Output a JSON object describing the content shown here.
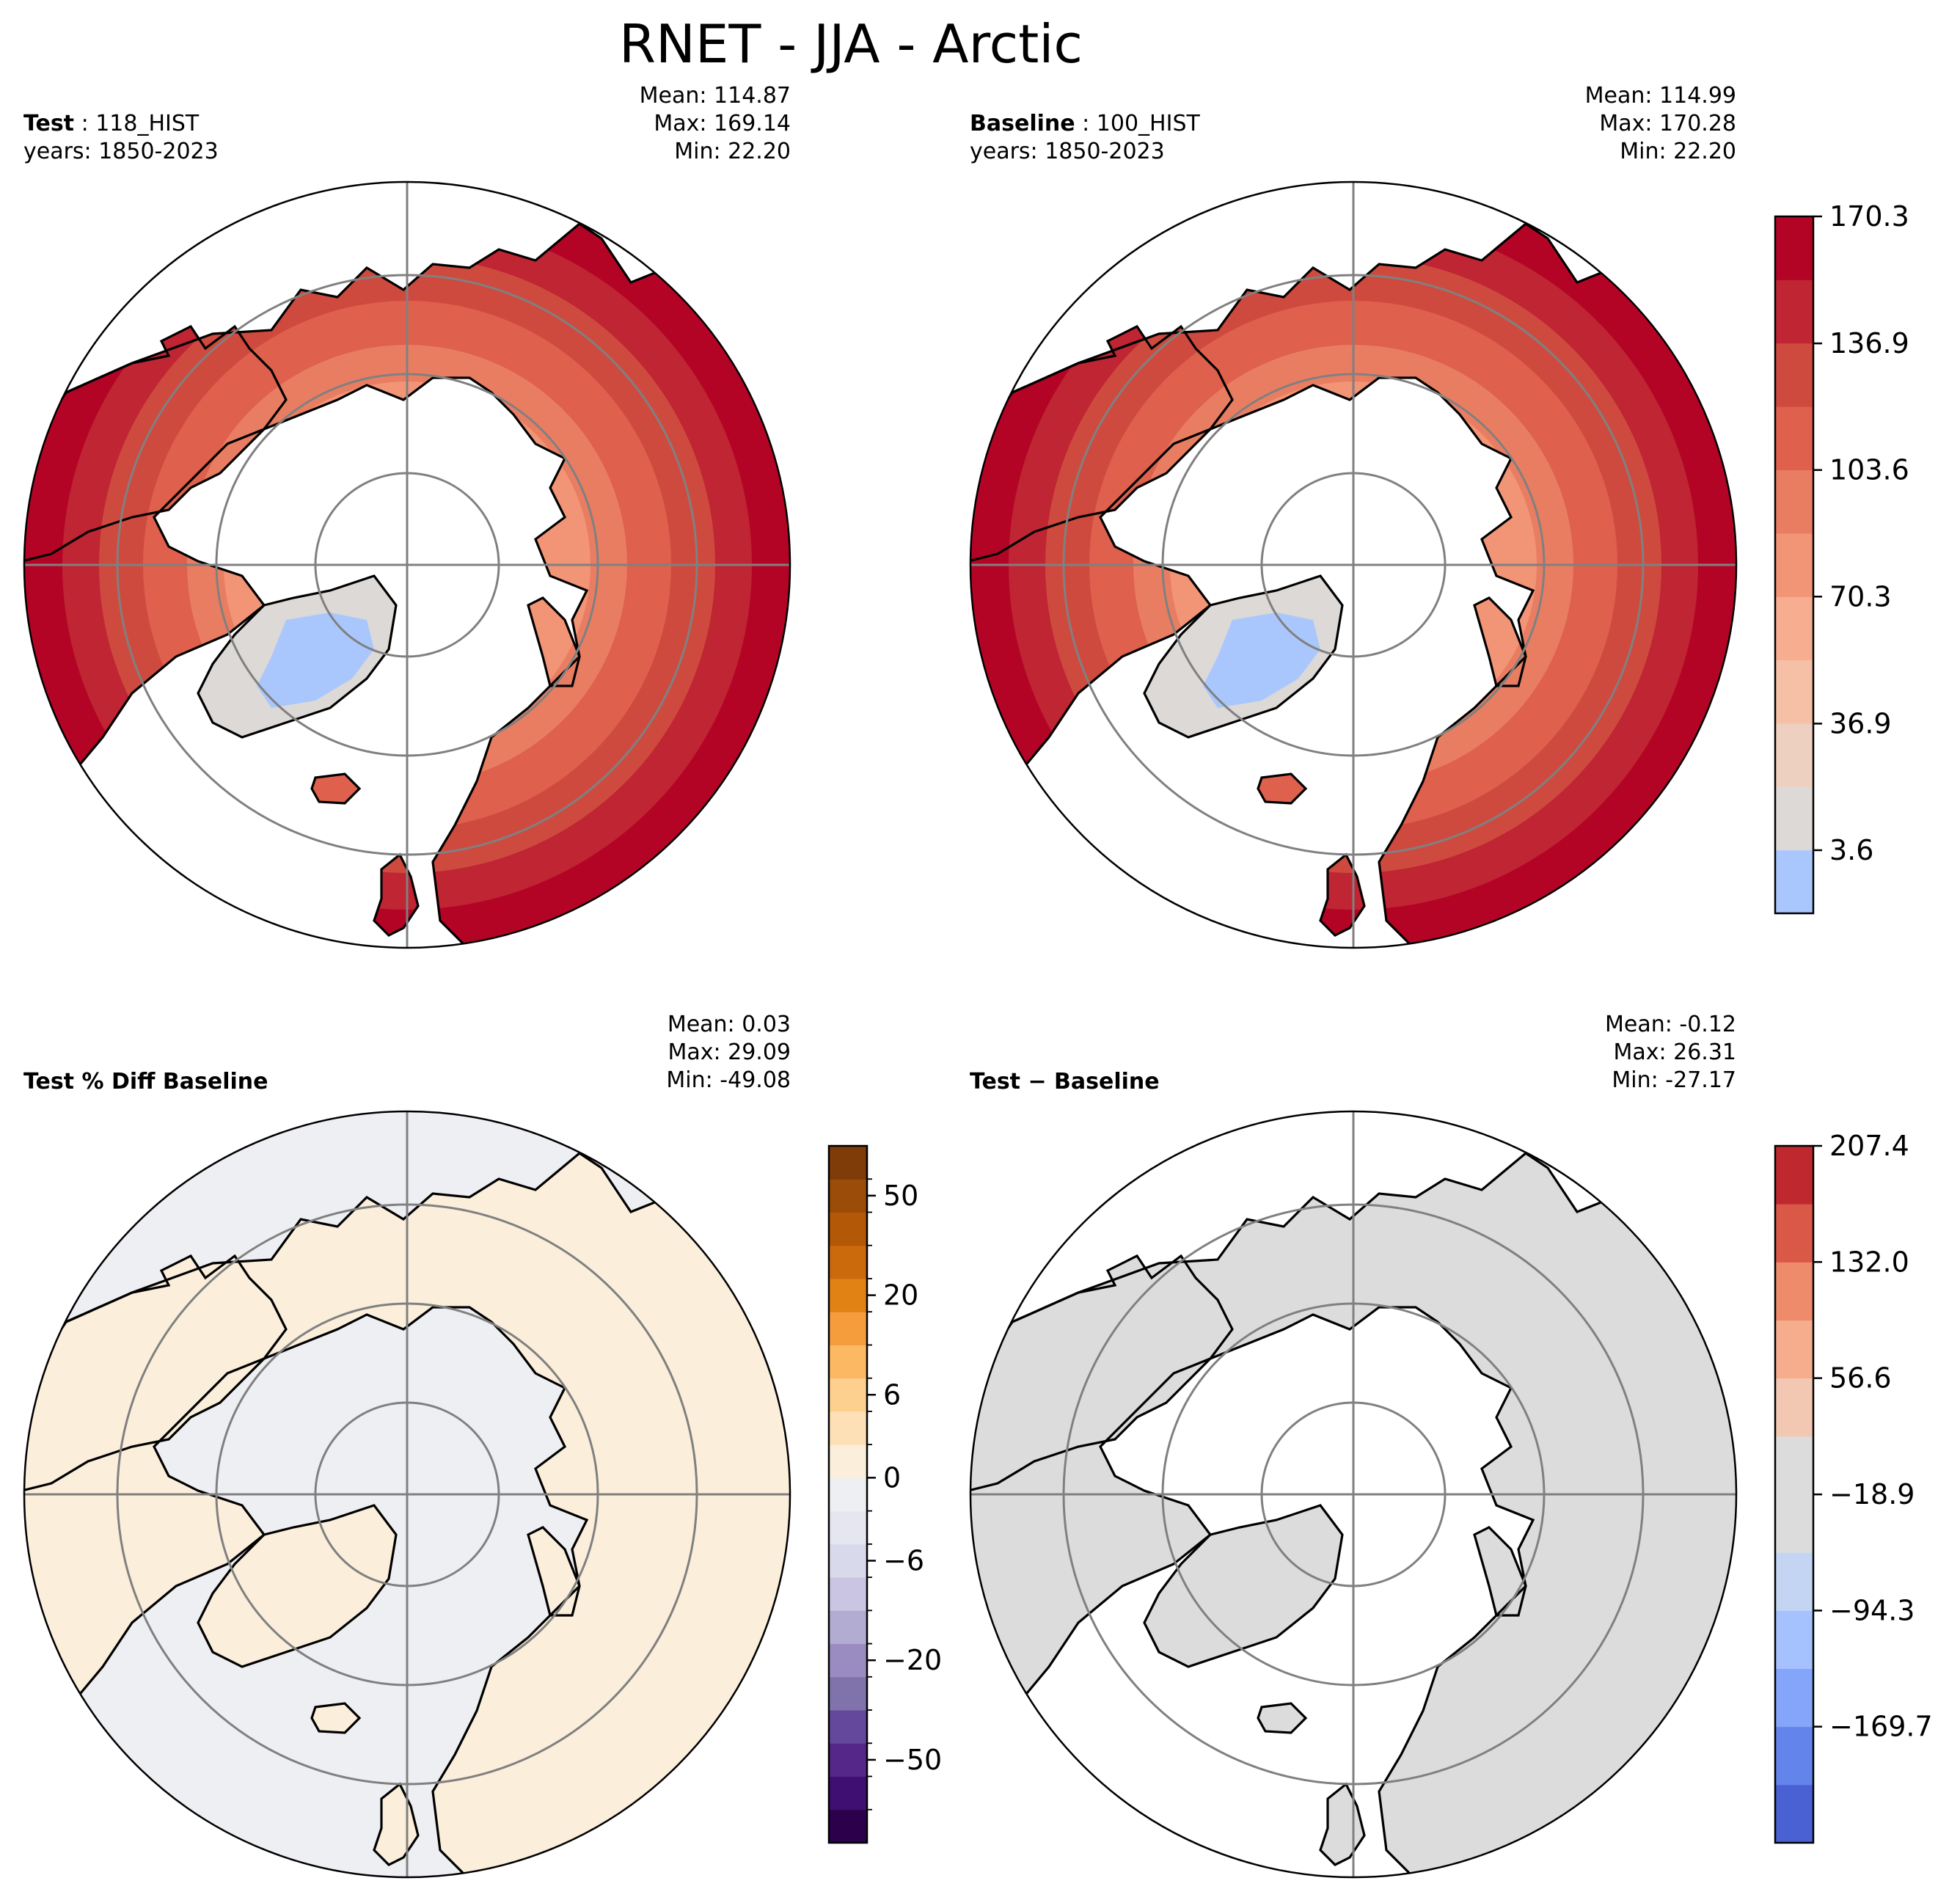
{
  "figure": {
    "title": "RNET - JJA - Arctic"
  },
  "panels": {
    "test": {
      "label_key": "Test",
      "label_val": " : 118_HIST",
      "years": "years: 1850-2023",
      "stats": [
        "Mean: 114.87",
        "Max: 169.14",
        "Min: 22.20"
      ]
    },
    "baseline": {
      "label_key": "Baseline",
      "label_val": " : 100_HIST",
      "years": "years: 1850-2023",
      "stats": [
        "Mean: 114.99",
        "Max: 170.28",
        "Min: 22.20"
      ]
    },
    "pctdiff": {
      "label": "Test % Diff Baseline",
      "stats": [
        "Mean:  0.03",
        "Max: 29.09",
        "Min: -49.08"
      ]
    },
    "diff": {
      "label": "Test − Baseline",
      "stats": [
        "Mean: -0.12",
        "Max: 26.31",
        "Min: -27.17"
      ]
    }
  },
  "chart_data": [
    {
      "type": "heatmap",
      "projection": "north-polar-stereographic",
      "panel": "Test",
      "variable": "RNET",
      "season": "JJA",
      "region": "Arctic",
      "case": "118_HIST",
      "years": "1850-2023",
      "mean": 114.87,
      "max": 169.14,
      "min": 22.2,
      "colorbar": "shared with Baseline"
    },
    {
      "type": "heatmap",
      "projection": "north-polar-stereographic",
      "panel": "Baseline",
      "variable": "RNET",
      "season": "JJA",
      "region": "Arctic",
      "case": "100_HIST",
      "years": "1850-2023",
      "mean": 114.99,
      "max": 170.28,
      "min": 22.2,
      "colorbar": {
        "levels": [
          -13,
          3.6,
          20.3,
          36.9,
          53.6,
          70.3,
          87.0,
          103.6,
          120.3,
          136.9,
          153.6,
          170.3
        ],
        "tick_labels": [
          "3.6",
          "36.9",
          "70.3",
          "103.6",
          "136.9",
          "170.3"
        ],
        "tick_values": [
          3.6,
          36.9,
          70.3,
          103.6,
          136.9,
          170.3
        ],
        "colors": [
          "#aac7fd",
          "#dcd9d6",
          "#eed0c0",
          "#f5c0a5",
          "#f7ad8f",
          "#f29476",
          "#e97d62",
          "#de604d",
          "#cf4a3e",
          "#bf2532",
          "#b40426"
        ]
      }
    },
    {
      "type": "heatmap",
      "projection": "north-polar-stereographic",
      "panel": "Test % Diff Baseline",
      "mean": 0.03,
      "max": 29.09,
      "min": -49.08,
      "colorbar": {
        "tick_labels": [
          "−50",
          "−20",
          "−6",
          "0",
          "6",
          "20",
          "50"
        ],
        "tick_values": [
          -50,
          -20,
          -6,
          0,
          6,
          20,
          50
        ],
        "colors": [
          "#2d004b",
          "#3f0f72",
          "#542788",
          "#64489b",
          "#8073ac",
          "#9a8bc0",
          "#b2abd2",
          "#c9c5e2",
          "#d8daeb",
          "#e6e6f0",
          "#eeeff3",
          "#fbeedb",
          "#fee0b6",
          "#fdd08f",
          "#fdb863",
          "#f59d3d",
          "#e08214",
          "#cb6a0c",
          "#b35806",
          "#9a4c08",
          "#7f3b08"
        ]
      }
    },
    {
      "type": "heatmap",
      "projection": "north-polar-stereographic",
      "panel": "Test − Baseline",
      "mean": -0.12,
      "max": 26.31,
      "min": -27.17,
      "colorbar": {
        "levels": [
          -245.1,
          -207.4,
          -169.7,
          -132.0,
          -94.3,
          -56.6,
          -18.9,
          18.9,
          56.6,
          94.3,
          132.0,
          169.7,
          207.4
        ],
        "tick_labels": [
          "−169.7",
          "−94.3",
          "−18.9",
          "56.6",
          "132.0",
          "207.4"
        ],
        "tick_values": [
          -169.7,
          -94.3,
          -18.9,
          56.6,
          132.0,
          207.4
        ],
        "colors": [
          "#4961d2",
          "#6384eb",
          "#84a5f9",
          "#a5c2fe",
          "#c4d5f3",
          "#dcdcdc",
          "#dcdcdc",
          "#f3c8b2",
          "#f5ad8d",
          "#ed8b6a",
          "#d95847",
          "#c0282f"
        ]
      }
    }
  ],
  "colors": {
    "land_outline": "#000000",
    "graticule": "#808080",
    "ocean_mask": "#ffffff"
  }
}
